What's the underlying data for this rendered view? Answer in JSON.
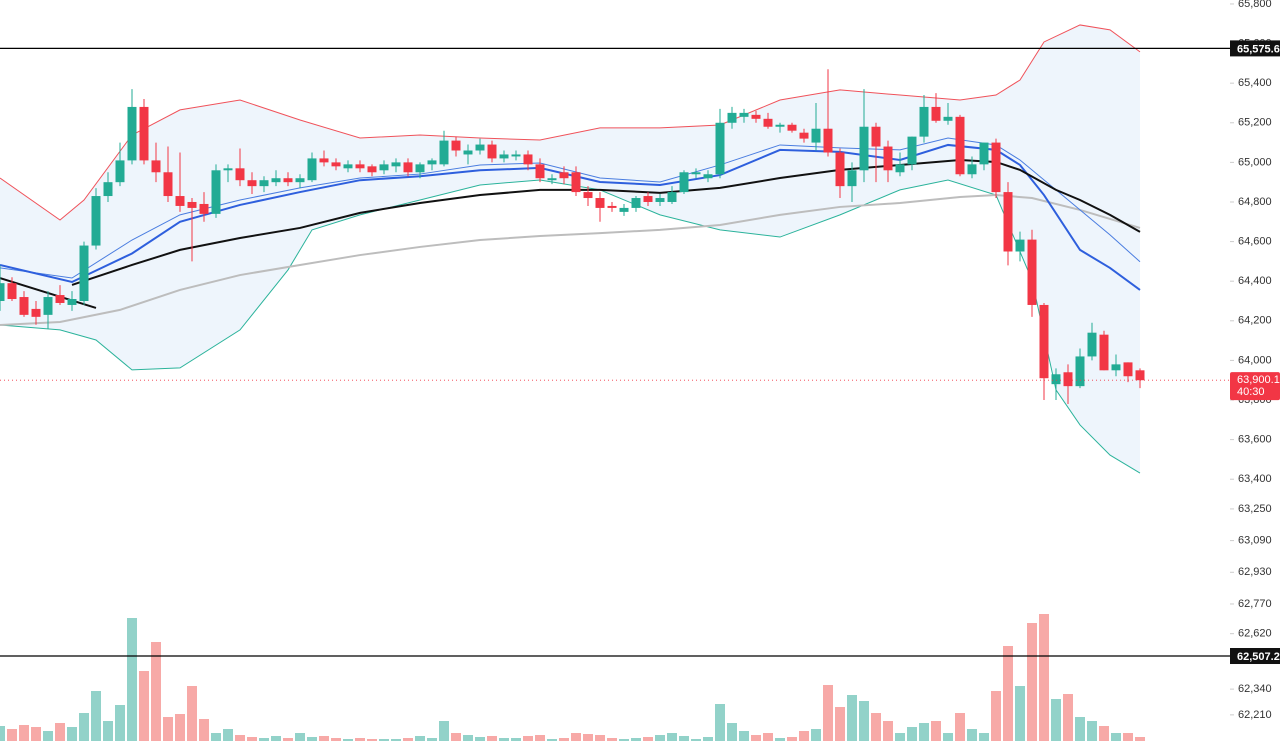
{
  "chart_data": {
    "type": "candlestick",
    "ylim": [
      62078,
      65820
    ],
    "yticks": [
      {
        "value": 65800,
        "label": "65,800"
      },
      {
        "value": 65600,
        "label": "65,600"
      },
      {
        "value": 65400,
        "label": "65,400"
      },
      {
        "value": 65200,
        "label": "65,200"
      },
      {
        "value": 65000,
        "label": "65,000"
      },
      {
        "value": 64800,
        "label": "64,800"
      },
      {
        "value": 64600,
        "label": "64,600"
      },
      {
        "value": 64400,
        "label": "64,400"
      },
      {
        "value": 64200,
        "label": "64,200"
      },
      {
        "value": 64000,
        "label": "64,000"
      },
      {
        "value": 63800,
        "label": "63,800"
      },
      {
        "value": 63600,
        "label": "63,600"
      },
      {
        "value": 63400,
        "label": "63,400"
      },
      {
        "value": 63250,
        "label": "63,250"
      },
      {
        "value": 63090,
        "label": "63,090"
      },
      {
        "value": 62930,
        "label": "62,930"
      },
      {
        "value": 62770,
        "label": "62,770"
      },
      {
        "value": 62620,
        "label": "62,620"
      },
      {
        "value": 62340,
        "label": "62,340"
      },
      {
        "value": 62210,
        "label": "62,210"
      }
    ],
    "grid": false,
    "up_color": "#22ab94",
    "down_color": "#f23645",
    "volume_up_color": "#92d2c9",
    "volume_down_color": "#f7a9a7",
    "candles": {
      "open": [
        64300,
        64390,
        64320,
        64260,
        64230,
        64330,
        64280,
        64300,
        64580,
        64830,
        64900,
        65010,
        65280,
        65010,
        64950,
        64830,
        64800,
        64790,
        64740,
        64960,
        64970,
        64910,
        64880,
        64900,
        64920,
        64900,
        64910,
        65020,
        65000,
        64970,
        64990,
        64980,
        64960,
        64980,
        65000,
        64950,
        64990,
        64990,
        65110,
        65040,
        65060,
        65090,
        65020,
        65030,
        65040,
        64990,
        64910,
        64950,
        64950,
        64850,
        64820,
        64780,
        64750,
        64770,
        64830,
        64800,
        64800,
        64850,
        64940,
        64920,
        64940,
        65200,
        65230,
        65240,
        65220,
        65180,
        65190,
        65150,
        65100,
        65170,
        65050,
        64880,
        64960,
        65180,
        65080,
        64950,
        64990,
        65130,
        65280,
        65210,
        65230,
        64940,
        64990,
        65100,
        64850,
        64550,
        64610,
        64280,
        63880,
        63940,
        63870,
        64020,
        64130,
        63950,
        63990,
        63950
      ],
      "high": [
        64480,
        64420,
        64350,
        64300,
        64350,
        64380,
        64350,
        64600,
        64870,
        64950,
        65100,
        65370,
        65320,
        65100,
        65080,
        65050,
        64820,
        64850,
        64990,
        64990,
        65070,
        64950,
        64930,
        64960,
        64950,
        64940,
        65050,
        65060,
        65020,
        65010,
        65010,
        64990,
        65010,
        65020,
        65020,
        65000,
        65020,
        65160,
        65130,
        65090,
        65120,
        65110,
        65060,
        65060,
        65060,
        65020,
        64940,
        64980,
        64980,
        64880,
        64850,
        64800,
        64790,
        64830,
        64850,
        64840,
        64880,
        64960,
        64970,
        64960,
        65270,
        65280,
        65270,
        65260,
        65250,
        65200,
        65200,
        65170,
        65300,
        65470,
        65070,
        65000,
        65370,
        65200,
        65110,
        65050,
        65130,
        65340,
        65350,
        65300,
        65240,
        65030,
        65090,
        65120,
        64900,
        64650,
        64660,
        64290,
        63960,
        63980,
        64060,
        64190,
        64150,
        64030,
        63990,
        63960
      ],
      "low": [
        64250,
        64300,
        64220,
        64180,
        64160,
        64280,
        64250,
        64280,
        64560,
        64800,
        64880,
        64990,
        64990,
        64900,
        64800,
        64750,
        64500,
        64700,
        64720,
        64900,
        64880,
        64840,
        64850,
        64880,
        64880,
        64870,
        64900,
        64980,
        64960,
        64950,
        64950,
        64930,
        64940,
        64950,
        64930,
        64920,
        64960,
        64980,
        65030,
        64990,
        65040,
        65000,
        65000,
        65010,
        64960,
        64900,
        64890,
        64890,
        64830,
        64780,
        64700,
        64750,
        64730,
        64750,
        64780,
        64780,
        64790,
        64840,
        64920,
        64900,
        64920,
        65170,
        65200,
        65200,
        65170,
        65150,
        65150,
        65100,
        65060,
        65030,
        64820,
        64800,
        64900,
        64900,
        64900,
        64930,
        64960,
        65100,
        65200,
        65190,
        64930,
        64920,
        64960,
        64820,
        64480,
        64500,
        64220,
        63800,
        63800,
        63780,
        63860,
        64000,
        63950,
        63920,
        63890,
        63860
      ],
      "close": [
        64390,
        64310,
        64230,
        64220,
        64320,
        64290,
        64310,
        64580,
        64830,
        64900,
        65010,
        65280,
        65010,
        64950,
        64830,
        64780,
        64770,
        64740,
        64960,
        64970,
        64910,
        64880,
        64910,
        64920,
        64900,
        64920,
        65020,
        65000,
        64980,
        64990,
        64970,
        64950,
        64990,
        65000,
        64950,
        64990,
        65010,
        65110,
        65060,
        65060,
        65090,
        65020,
        65040,
        65040,
        64990,
        64920,
        64920,
        64920,
        64850,
        64820,
        64770,
        64770,
        64770,
        64820,
        64800,
        64820,
        64850,
        64950,
        64950,
        64940,
        65200,
        65250,
        65250,
        65220,
        65180,
        65190,
        65160,
        65120,
        65170,
        65050,
        64880,
        64960,
        65180,
        65080,
        64960,
        64990,
        65130,
        65280,
        65210,
        65230,
        64940,
        64990,
        65100,
        64850,
        64550,
        64610,
        64280,
        63910,
        63930,
        63870,
        64020,
        64140,
        63950,
        63980,
        63920,
        63900
      ]
    },
    "volume": [
      15,
      12,
      16,
      14,
      10,
      18,
      14,
      28,
      50,
      20,
      36,
      123,
      70,
      99,
      24,
      27,
      55,
      22,
      8,
      12,
      6,
      4,
      3,
      5,
      3,
      8,
      4,
      5,
      3,
      2,
      3,
      2,
      2,
      2,
      3,
      5,
      3,
      20,
      8,
      6,
      4,
      5,
      3,
      3,
      5,
      6,
      2,
      3,
      8,
      7,
      6,
      3,
      2,
      3,
      4,
      6,
      8,
      5,
      2,
      4,
      37,
      18,
      10,
      6,
      8,
      3,
      4,
      10,
      12,
      56,
      34,
      46,
      40,
      28,
      20,
      8,
      14,
      18,
      20,
      8,
      28,
      12,
      8,
      50,
      95,
      55,
      118,
      127,
      42,
      47,
      24,
      20,
      15,
      8,
      8,
      4
    ],
    "vlim": [
      0,
      130
    ],
    "band_fill": "#eef5fc",
    "overlays": [
      {
        "color": "#f0525a",
        "width": 1,
        "x": [
          0,
          5,
          7,
          11,
          15,
          20,
          25,
          30,
          35,
          40,
          45,
          50,
          55,
          60,
          65,
          70,
          75,
          80,
          83,
          85,
          87,
          90,
          92.5,
          95
        ],
        "values": [
          64921,
          64709,
          64810,
          65138,
          65265,
          65315,
          65214,
          65123,
          65138,
          65123,
          65113,
          65174,
          65174,
          65189,
          65315,
          65366,
          65340,
          65315,
          65340,
          65416,
          65608,
          65694,
          65669,
          65558
        ]
      },
      {
        "color": "#2bb39b",
        "width": 1,
        "x": [
          0,
          5,
          8,
          11,
          15,
          20,
          24,
          26,
          30,
          35,
          40,
          45,
          50,
          55,
          60,
          65,
          70,
          75,
          79,
          83,
          86,
          88,
          90,
          92.5,
          95
        ],
        "values": [
          64179,
          64154,
          64103,
          63952,
          63962,
          64154,
          64457,
          64659,
          64735,
          64810,
          64886,
          64911,
          64861,
          64735,
          64659,
          64623,
          64735,
          64861,
          64911,
          64835,
          64406,
          63851,
          63674,
          63522,
          63431
        ]
      },
      {
        "color": "#bdbdbd",
        "width": 2,
        "x": [
          0,
          5,
          10,
          15,
          20,
          25,
          30,
          35,
          40,
          45,
          50,
          55,
          60,
          65,
          70,
          75,
          80,
          83,
          86,
          90,
          95
        ],
        "values": [
          64179,
          64194,
          64255,
          64356,
          64431,
          64482,
          64532,
          64573,
          64608,
          64628,
          64643,
          64659,
          64684,
          64735,
          64775,
          64795,
          64825,
          64835,
          64820,
          64760,
          64669
        ]
      },
      {
        "color": "#4a7de0",
        "width": 1,
        "x": [
          0,
          6,
          11,
          15,
          20,
          25,
          30,
          35,
          40,
          45,
          50,
          55,
          60,
          65,
          70,
          75,
          79,
          83,
          85,
          88,
          90,
          92.5,
          95
        ],
        "values": [
          64467,
          64416,
          64608,
          64735,
          64810,
          64871,
          64921,
          64941,
          64987,
          64997,
          64921,
          64901,
          64987,
          65088,
          65073,
          65063,
          65123,
          65088,
          65012,
          64861,
          64760,
          64634,
          64498
        ]
      },
      {
        "color": "#2e5fdd",
        "width": 2,
        "x": [
          0,
          6,
          11,
          15,
          20,
          25,
          30,
          35,
          40,
          45,
          50,
          55,
          60,
          65,
          70,
          75,
          79,
          83,
          85,
          87,
          90,
          92.5,
          95
        ],
        "values": [
          64482,
          64396,
          64540,
          64700,
          64785,
          64850,
          64910,
          64930,
          64960,
          64972,
          64901,
          64886,
          64936,
          65063,
          65053,
          65012,
          65088,
          65063,
          64987,
          64835,
          64558,
          64467,
          64356
        ]
      },
      {
        "color": "#111111",
        "width": 2,
        "x": [
          0,
          8
        ],
        "values": [
          64416,
          64265
        ]
      },
      {
        "color": "#111111",
        "width": 2,
        "x": [
          6,
          11,
          15,
          20,
          25,
          30,
          35,
          40,
          45,
          50,
          55,
          60,
          65,
          70,
          75,
          80,
          83,
          85,
          88,
          90,
          92.5,
          95
        ],
        "values": [
          64381,
          64482,
          64558,
          64618,
          64669,
          64745,
          64795,
          64835,
          64861,
          64861,
          64846,
          64871,
          64921,
          64962,
          64987,
          65012,
          65002,
          64962,
          64861,
          64810,
          64735,
          64649
        ]
      }
    ],
    "hlines": [
      {
        "value": 65575.6,
        "label": "65,575.6"
      },
      {
        "value": 62507.2,
        "label": "62,507.2"
      }
    ],
    "last_price": {
      "value": 63900.1,
      "label": "63,900.1"
    },
    "countdown": "40:30"
  }
}
